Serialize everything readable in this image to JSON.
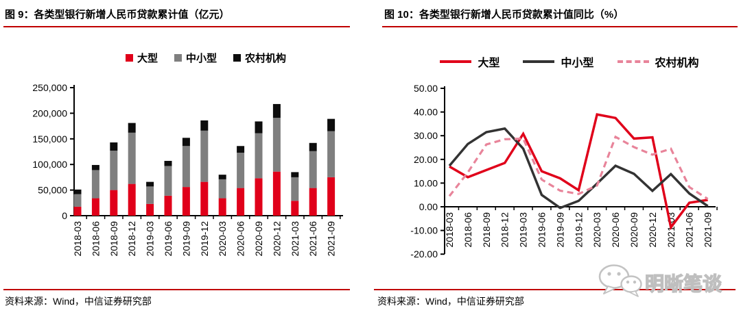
{
  "figure9": {
    "title": "图 9：各类型银行新增人民币贷款累计值（亿元）",
    "source": "资料来源：Wind，中信证券研究部"
  },
  "figure10": {
    "title": "图 10：各类型银行新增人民币贷款累计值同比（%）",
    "source": "资料来源：Wind，中信证券研究部"
  },
  "watermark": {
    "label": "明晰笔谈"
  },
  "colors": {
    "rule_red": "#c00000",
    "watermark_gray": "#c3c3c3"
  },
  "chart_data": [
    {
      "type": "bar",
      "stacked": true,
      "title": "各类型银行新增人民币贷款累计值（亿元）",
      "categories": [
        "2018-03",
        "2018-06",
        "2018-09",
        "2018-12",
        "2019-03",
        "2019-06",
        "2019-09",
        "2019-12",
        "2020-03",
        "2020-06",
        "2020-09",
        "2020-12",
        "2021-03",
        "2021-06",
        "2021-09"
      ],
      "series": [
        {
          "name": "大型",
          "color": "#e0001a",
          "values": [
            17500,
            34000,
            50000,
            62000,
            23000,
            39000,
            56000,
            66000,
            34000,
            54000,
            73000,
            86000,
            29000,
            54000,
            75000
          ]
        },
        {
          "name": "中小型",
          "color": "#7f7f7f",
          "values": [
            24500,
            55000,
            77000,
            100000,
            34000,
            58000,
            80000,
            100000,
            37000,
            69000,
            88000,
            105000,
            46000,
            72000,
            90000
          ]
        },
        {
          "name": "农村机构",
          "color": "#0d0d0d",
          "values": [
            9000,
            10000,
            16000,
            19000,
            9000,
            10000,
            16000,
            20000,
            9000,
            13000,
            23000,
            27000,
            10000,
            16000,
            24000
          ]
        }
      ],
      "ylim": [
        0,
        250000
      ],
      "yticks": [
        0,
        50000,
        100000,
        150000,
        200000,
        250000
      ],
      "ytick_labels": [
        "0",
        "50,000",
        "100,000",
        "150,000",
        "200,000",
        "250,000"
      ],
      "grid": false,
      "legend_position": "top"
    },
    {
      "type": "line",
      "title": "各类型银行新增人民币贷款累计值同比（%）",
      "categories": [
        "2018-03",
        "2018-06",
        "2018-09",
        "2018-12",
        "2019-03",
        "2019-06",
        "2019-09",
        "2019-12",
        "2020-03",
        "2020-06",
        "2020-09",
        "2020-12",
        "2021-03",
        "2021-06",
        "2021-09"
      ],
      "series": [
        {
          "name": "大型",
          "color": "#e0001a",
          "dash": null,
          "values": [
            17.0,
            12.5,
            15.5,
            18.5,
            30.8,
            15.0,
            12.0,
            7.0,
            39.0,
            37.5,
            28.8,
            29.3,
            -8.7,
            1.7,
            2.9
          ]
        },
        {
          "name": "中小型",
          "color": "#333333",
          "dash": null,
          "values": [
            17.3,
            26.5,
            31.5,
            33.0,
            24.5,
            5.0,
            -0.5,
            2.5,
            9.8,
            17.3,
            13.9,
            6.7,
            13.8,
            5.6,
            0.3
          ]
        },
        {
          "name": "农村机构",
          "color": "#e8849a",
          "dash": "9,6",
          "values": [
            4.5,
            14.5,
            26.3,
            28.5,
            28.8,
            11.5,
            6.8,
            5.4,
            9.0,
            29.5,
            25.2,
            22.0,
            24.5,
            8.3,
            3.3
          ]
        }
      ],
      "ylim": [
        -20,
        50
      ],
      "yticks": [
        -20,
        -10,
        0,
        10,
        20,
        30,
        40,
        50
      ],
      "ytick_labels": [
        "-20.00",
        "-10.00",
        "0.00",
        "10.00",
        "20.00",
        "30.00",
        "40.00",
        "50.00"
      ],
      "grid": false,
      "legend_position": "top"
    }
  ]
}
